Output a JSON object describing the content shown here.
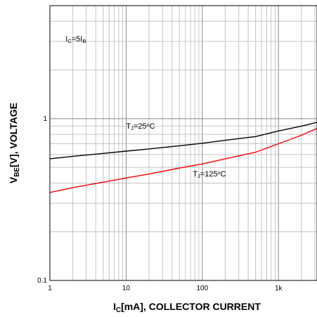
{
  "chart_data": {
    "type": "line",
    "x_scale": "log",
    "y_scale": "log",
    "xlim": [
      1,
      3200
    ],
    "ylim": [
      0.1,
      5
    ],
    "grid": true,
    "x_tick_labels": [
      "1",
      "10",
      "100",
      "1k"
    ],
    "y_tick_labels": [
      "0.1",
      "1"
    ],
    "xlabel": {
      "main": "I",
      "sub": "C",
      "rest": "[mA], COLLECTOR CURRENT"
    },
    "ylabel": {
      "main": "V",
      "sub": "BE",
      "rest": "[V], VOLTAGE"
    },
    "annotations": [
      {
        "id": "condition",
        "parts": [
          {
            "t": "I"
          },
          {
            "t": "C",
            "sub": true
          },
          {
            "t": "=5I"
          },
          {
            "t": "B",
            "sub": true
          }
        ],
        "x": 1.6,
        "y": 3.0
      },
      {
        "id": "label-25",
        "parts": [
          {
            "t": "T"
          },
          {
            "t": "J",
            "sub": true
          },
          {
            "t": "=25"
          },
          {
            "t": "o",
            "sup": true
          },
          {
            "t": "C"
          }
        ],
        "x": 10,
        "y": 0.87
      },
      {
        "id": "label-125",
        "parts": [
          {
            "t": "T"
          },
          {
            "t": "J",
            "sub": true
          },
          {
            "t": "=125"
          },
          {
            "t": "o",
            "sup": true
          },
          {
            "t": "C"
          }
        ],
        "x": 75,
        "y": 0.44
      }
    ],
    "series": [
      {
        "color": "#000000",
        "x": [
          1,
          2,
          5,
          10,
          20,
          50,
          100,
          200,
          500,
          1000,
          2000,
          3200
        ],
        "y": [
          0.565,
          0.585,
          0.61,
          0.63,
          0.65,
          0.68,
          0.705,
          0.735,
          0.775,
          0.84,
          0.9,
          0.95
        ]
      },
      {
        "color": "#ff0000",
        "x": [
          1,
          2,
          5,
          10,
          20,
          50,
          100,
          200,
          500,
          1000,
          2000,
          3200
        ],
        "y": [
          0.35,
          0.375,
          0.405,
          0.43,
          0.455,
          0.495,
          0.525,
          0.565,
          0.62,
          0.7,
          0.79,
          0.87
        ]
      }
    ]
  }
}
